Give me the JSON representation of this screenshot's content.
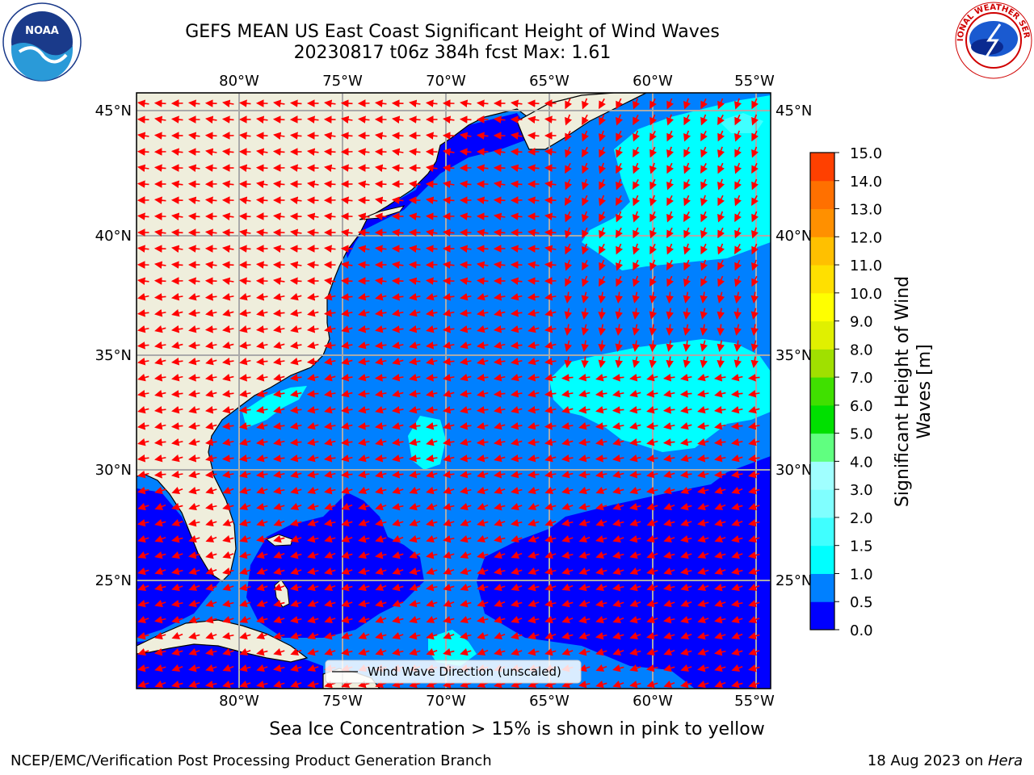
{
  "title": {
    "line1": "GEFS MEAN US East Coast Significant Height of Wind Waves",
    "line2": "20230817 t06z 384h fcst   Max: 1.61"
  },
  "map": {
    "projection": "Plate Carree",
    "lon_range": [
      -85,
      -54.5
    ],
    "lat_range": [
      20.5,
      46
    ],
    "lon_ticks": [
      "80°W",
      "75°W",
      "70°W",
      "65°W",
      "60°W",
      "55°W"
    ],
    "lat_ticks": [
      "45°N",
      "40°N",
      "35°N",
      "30°N",
      "25°N"
    ],
    "grid": true,
    "legend_label": "Wind Wave Direction (unscaled)",
    "legend_position": "bottom-center",
    "land_color": "#efeedc",
    "arrow_color": "#ff0000"
  },
  "colorbar": {
    "label": "Significant Height of Wind Waves [m]",
    "label_line1": "Significant Height of Wind",
    "label_line2": "Waves [m]",
    "ticks": [
      "0.0",
      "0.5",
      "1.0",
      "1.5",
      "2.0",
      "3.0",
      "4.0",
      "5.0",
      "6.0",
      "7.0",
      "8.0",
      "9.0",
      "10.0",
      "11.0",
      "12.0",
      "13.0",
      "14.0",
      "15.0"
    ],
    "colors": [
      "#0000ff",
      "#0080ff",
      "#00ffff",
      "#40ffff",
      "#80ffff",
      "#a0ffff",
      "#60ff80",
      "#00e000",
      "#40e000",
      "#a0e000",
      "#e0f000",
      "#ffff00",
      "#ffe000",
      "#ffc000",
      "#ff9000",
      "#ff7000",
      "#ff4000",
      "#ff0000"
    ]
  },
  "note": "Sea Ice Concentration > 15% is shown in pink to yellow",
  "credit": "NCEP/EMC/Verification Post Processing Product Generation Branch",
  "stamp": {
    "date": "18 Aug 2023 on ",
    "host": "Hera"
  },
  "logos": {
    "left": "NOAA",
    "right": "NATIONAL WEATHER SERVICE"
  }
}
